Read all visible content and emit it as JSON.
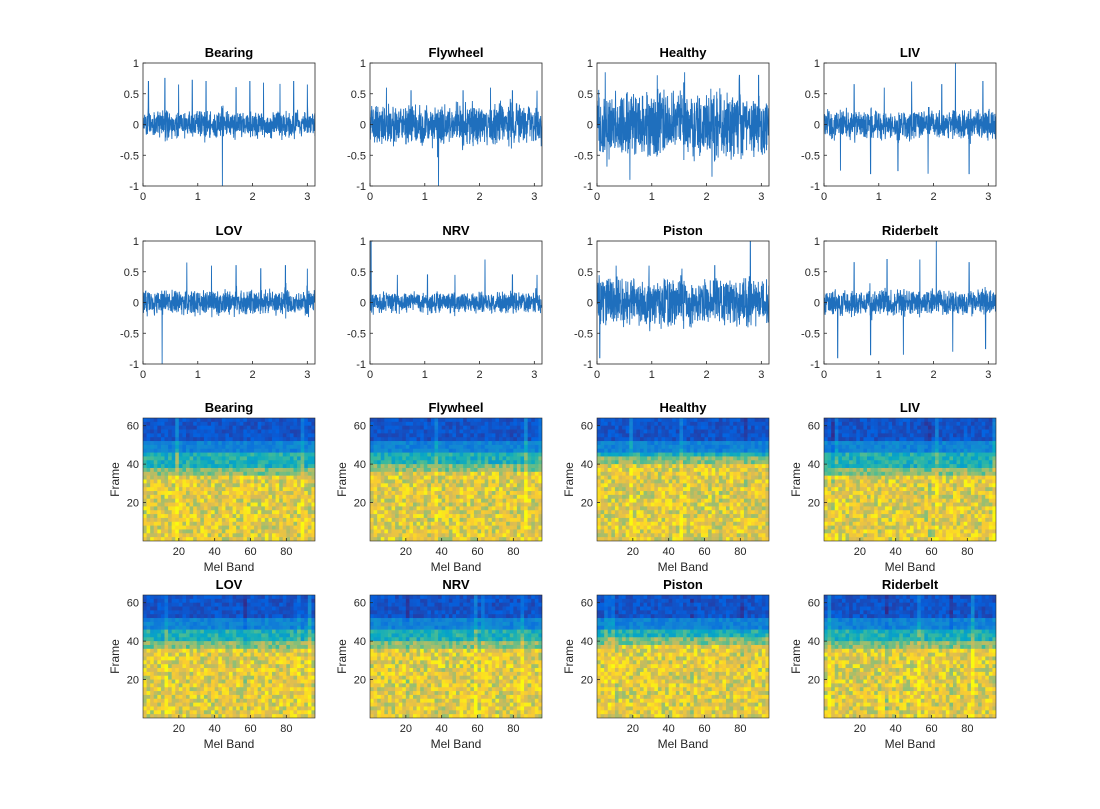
{
  "colors": {
    "trace": "#1f6fbd",
    "axis": "#262626",
    "background": "#ffffff"
  },
  "chart_data": [
    {
      "type": "line",
      "title": "Bearing",
      "xlim": [
        0,
        3.14
      ],
      "ylim": [
        -1,
        1
      ],
      "xticks": [
        "0",
        "1",
        "2",
        "3"
      ],
      "yticks": [
        "1",
        "0.5",
        "0",
        "-0.5",
        "-1"
      ],
      "noise_amplitude": 0.18,
      "spike_times": [
        0.1,
        0.4,
        0.65,
        0.9,
        1.15,
        1.45,
        1.7,
        1.95,
        2.2,
        2.5,
        2.75,
        3.0
      ],
      "spike_heights": [
        0.7,
        0.75,
        0.65,
        0.72,
        0.7,
        -1.0,
        0.6,
        0.7,
        0.68,
        0.66,
        0.7,
        0.65
      ]
    },
    {
      "type": "line",
      "title": "Flywheel",
      "xlim": [
        0,
        3.14
      ],
      "ylim": [
        -1,
        1
      ],
      "xticks": [
        "0",
        "1",
        "2",
        "3"
      ],
      "yticks": [
        "1",
        "0.5",
        "0",
        "-0.5",
        "-1"
      ],
      "noise_amplitude": 0.28,
      "spike_times": [
        0.3,
        0.75,
        1.25,
        1.7,
        2.2,
        2.6,
        3.05
      ],
      "spike_heights": [
        0.6,
        0.55,
        -1.0,
        0.55,
        0.6,
        0.55,
        0.55
      ]
    },
    {
      "type": "line",
      "title": "Healthy",
      "xlim": [
        0,
        3.14
      ],
      "ylim": [
        -1,
        1
      ],
      "xticks": [
        "0",
        "1",
        "2",
        "3"
      ],
      "yticks": [
        "1",
        "0.5",
        "0",
        "-0.5",
        "-1"
      ],
      "noise_amplitude": 0.45,
      "spike_times": [
        0.15,
        0.6,
        1.1,
        1.6,
        2.1,
        2.6,
        2.95
      ],
      "spike_heights": [
        0.85,
        -0.9,
        0.8,
        0.85,
        -0.85,
        0.8,
        0.8
      ]
    },
    {
      "type": "line",
      "title": "LIV",
      "xlim": [
        0,
        3.14
      ],
      "ylim": [
        -1,
        1
      ],
      "xticks": [
        "0",
        "1",
        "2",
        "3"
      ],
      "yticks": [
        "1",
        "0.5",
        "0",
        "-0.5",
        "-1"
      ],
      "noise_amplitude": 0.2,
      "spike_times": [
        0.3,
        0.55,
        0.85,
        1.1,
        1.35,
        1.6,
        1.9,
        2.15,
        2.4,
        2.65,
        2.9
      ],
      "spike_heights": [
        -0.75,
        0.65,
        -0.8,
        0.6,
        -0.75,
        0.7,
        -0.8,
        0.65,
        1.0,
        -0.8,
        0.7
      ]
    },
    {
      "type": "line",
      "title": "LOV",
      "xlim": [
        0,
        3.14
      ],
      "ylim": [
        -1,
        1
      ],
      "xticks": [
        "0",
        "1",
        "2",
        "3"
      ],
      "yticks": [
        "1",
        "0.5",
        "0",
        "-0.5",
        "-1"
      ],
      "noise_amplitude": 0.17,
      "spike_times": [
        0.35,
        0.8,
        1.25,
        1.7,
        2.15,
        2.6,
        3.0
      ],
      "spike_heights": [
        -1.0,
        0.65,
        0.6,
        0.6,
        0.55,
        0.6,
        0.55
      ]
    },
    {
      "type": "line",
      "title": "NRV",
      "xlim": [
        0,
        3.14
      ],
      "ylim": [
        -1,
        1
      ],
      "xticks": [
        "0",
        "1",
        "2",
        "3"
      ],
      "yticks": [
        "1",
        "0.5",
        "0",
        "-0.5",
        "-1"
      ],
      "noise_amplitude": 0.14,
      "spike_times": [
        0.02,
        0.5,
        1.05,
        1.55,
        2.1,
        2.6,
        3.05
      ],
      "spike_heights": [
        1.0,
        0.45,
        0.45,
        0.45,
        0.7,
        0.45,
        0.45
      ]
    },
    {
      "type": "line",
      "title": "Piston",
      "xlim": [
        0,
        3.14
      ],
      "ylim": [
        -1,
        1
      ],
      "xticks": [
        "0",
        "1",
        "2",
        "3"
      ],
      "yticks": [
        "1",
        "0.5",
        "0",
        "-0.5",
        "-1"
      ],
      "noise_amplitude": 0.32,
      "spike_times": [
        0.05,
        0.35,
        0.95,
        1.55,
        2.15,
        2.8
      ],
      "spike_heights": [
        -0.9,
        0.6,
        0.6,
        0.55,
        0.6,
        1.0
      ]
    },
    {
      "type": "line",
      "title": "Riderbelt",
      "xlim": [
        0,
        3.14
      ],
      "ylim": [
        -1,
        1
      ],
      "xticks": [
        "0",
        "1",
        "2",
        "3"
      ],
      "yticks": [
        "1",
        "0.5",
        "0",
        "-0.5",
        "-1"
      ],
      "noise_amplitude": 0.17,
      "spike_times": [
        0.25,
        0.55,
        0.85,
        1.15,
        1.45,
        1.75,
        2.05,
        2.35,
        2.65,
        2.95
      ],
      "spike_heights": [
        -0.9,
        0.65,
        -0.85,
        0.7,
        -0.85,
        0.7,
        1.0,
        -0.8,
        0.65,
        -0.75
      ]
    },
    {
      "type": "heatmap",
      "title": "Bearing",
      "xlabel": "Mel Band",
      "ylabel": "Frame",
      "xlim": [
        0,
        96
      ],
      "ylim": [
        0,
        64
      ],
      "xticks": [
        "20",
        "40",
        "60",
        "80"
      ],
      "yticks": [
        "60",
        "40",
        "20"
      ],
      "band_boundary": 33,
      "colormap": [
        "#352a87",
        "#0363e1",
        "#1485d4",
        "#06a7c6",
        "#38b99e",
        "#92bf73",
        "#d9ba56",
        "#fcce2e",
        "#f9fb0e"
      ]
    },
    {
      "type": "heatmap",
      "title": "Flywheel",
      "xlabel": "Mel Band",
      "ylabel": "Frame",
      "xlim": [
        0,
        96
      ],
      "ylim": [
        0,
        64
      ],
      "xticks": [
        "20",
        "40",
        "60",
        "80"
      ],
      "yticks": [
        "60",
        "40",
        "20"
      ],
      "band_boundary": 35,
      "colormap": [
        "#352a87",
        "#0363e1",
        "#1485d4",
        "#06a7c6",
        "#38b99e",
        "#92bf73",
        "#d9ba56",
        "#fcce2e",
        "#f9fb0e"
      ]
    },
    {
      "type": "heatmap",
      "title": "Healthy",
      "xlabel": "Mel Band",
      "ylabel": "Frame",
      "xlim": [
        0,
        96
      ],
      "ylim": [
        0,
        64
      ],
      "xticks": [
        "20",
        "40",
        "60",
        "80"
      ],
      "yticks": [
        "60",
        "40",
        "20"
      ],
      "band_boundary": 40,
      "colormap": [
        "#352a87",
        "#0363e1",
        "#1485d4",
        "#06a7c6",
        "#38b99e",
        "#92bf73",
        "#d9ba56",
        "#fcce2e",
        "#f9fb0e"
      ]
    },
    {
      "type": "heatmap",
      "title": "LIV",
      "xlabel": "Mel Band",
      "ylabel": "Frame",
      "xlim": [
        0,
        96
      ],
      "ylim": [
        0,
        64
      ],
      "xticks": [
        "20",
        "40",
        "60",
        "80"
      ],
      "yticks": [
        "60",
        "40",
        "20"
      ],
      "band_boundary": 34,
      "colormap": [
        "#352a87",
        "#0363e1",
        "#1485d4",
        "#06a7c6",
        "#38b99e",
        "#92bf73",
        "#d9ba56",
        "#fcce2e",
        "#f9fb0e"
      ]
    },
    {
      "type": "heatmap",
      "title": "LOV",
      "xlabel": "Mel Band",
      "ylabel": "Frame",
      "xlim": [
        0,
        96
      ],
      "ylim": [
        0,
        64
      ],
      "xticks": [
        "20",
        "40",
        "60",
        "80"
      ],
      "yticks": [
        "60",
        "40",
        "20"
      ],
      "band_boundary": 35,
      "colormap": [
        "#352a87",
        "#0363e1",
        "#1485d4",
        "#06a7c6",
        "#38b99e",
        "#92bf73",
        "#d9ba56",
        "#fcce2e",
        "#f9fb0e"
      ]
    },
    {
      "type": "heatmap",
      "title": "NRV",
      "xlabel": "Mel Band",
      "ylabel": "Frame",
      "xlim": [
        0,
        96
      ],
      "ylim": [
        0,
        64
      ],
      "xticks": [
        "20",
        "40",
        "60",
        "80"
      ],
      "yticks": [
        "60",
        "40",
        "20"
      ],
      "band_boundary": 36,
      "colormap": [
        "#352a87",
        "#0363e1",
        "#1485d4",
        "#06a7c6",
        "#38b99e",
        "#92bf73",
        "#d9ba56",
        "#fcce2e",
        "#f9fb0e"
      ]
    },
    {
      "type": "heatmap",
      "title": "Piston",
      "xlabel": "Mel Band",
      "ylabel": "Frame",
      "xlim": [
        0,
        96
      ],
      "ylim": [
        0,
        64
      ],
      "xticks": [
        "20",
        "40",
        "60",
        "80"
      ],
      "yticks": [
        "60",
        "40",
        "20"
      ],
      "band_boundary": 37,
      "colormap": [
        "#352a87",
        "#0363e1",
        "#1485d4",
        "#06a7c6",
        "#38b99e",
        "#92bf73",
        "#d9ba56",
        "#fcce2e",
        "#f9fb0e"
      ]
    },
    {
      "type": "heatmap",
      "title": "Riderbelt",
      "xlabel": "Mel Band",
      "ylabel": "Frame",
      "xlim": [
        0,
        96
      ],
      "ylim": [
        0,
        64
      ],
      "xticks": [
        "20",
        "40",
        "60",
        "80"
      ],
      "yticks": [
        "60",
        "40",
        "20"
      ],
      "band_boundary": 35,
      "colormap": [
        "#352a87",
        "#0363e1",
        "#1485d4",
        "#06a7c6",
        "#38b99e",
        "#92bf73",
        "#d9ba56",
        "#fcce2e",
        "#f9fb0e"
      ]
    }
  ]
}
